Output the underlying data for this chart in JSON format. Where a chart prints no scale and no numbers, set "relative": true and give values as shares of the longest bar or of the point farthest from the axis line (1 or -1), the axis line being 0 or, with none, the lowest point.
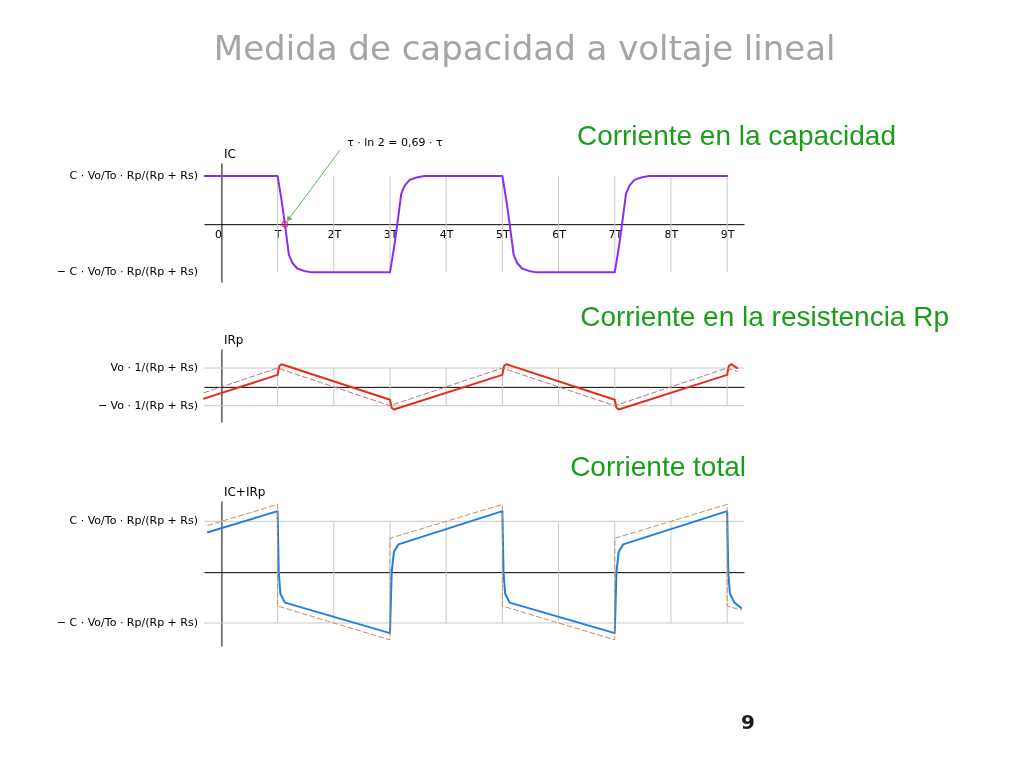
{
  "chart_data": [
    {
      "type": "line",
      "title": "Medida de capacidad a voltaje lineal",
      "subtitle": "Corriente en la capacidad",
      "ylabel": "IC",
      "relative": true,
      "xlim": [
        -0.31,
        9.3
      ],
      "xticks": [
        0,
        {
          "value": 1,
          "label": "T"
        },
        {
          "value": 2,
          "label": "2T"
        },
        {
          "value": 3,
          "label": "3T"
        },
        {
          "value": 4,
          "label": "4T"
        },
        {
          "value": 5,
          "label": "5T"
        },
        {
          "value": 6,
          "label": "6T"
        },
        {
          "value": 7,
          "label": "7T"
        },
        {
          "value": 8,
          "label": "8T"
        },
        {
          "value": 9,
          "label": "9T"
        }
      ],
      "grid": "x",
      "tick_labels": "x",
      "annotations": [
        "C · Vo/To · Rp/(Rp + Rs)",
        "− C · Vo/To · Rp/(Rp + Rs)",
        {
          "text": "τ · ln 2 = 0,69 · τ",
          "x": 1.13,
          "y": 0
        }
      ],
      "series": [
        {
          "color": "#8b2cf5",
          "x": [
            -0.3,
            1.0,
            1.07,
            1.13,
            1.2,
            1.26,
            1.35,
            1.47,
            1.61,
            3.0,
            3.07,
            3.13,
            3.2,
            3.26,
            3.35,
            3.47,
            3.61,
            5.0,
            5.07,
            5.13,
            5.2,
            5.26,
            5.35,
            5.47,
            5.61,
            7.0,
            7.07,
            7.13,
            7.2,
            7.26,
            7.35,
            7.47,
            7.61,
            9.0
          ],
          "values": [
            1,
            1,
            0.5,
            0,
            -0.63,
            -0.8,
            -0.92,
            -0.97,
            -1,
            -1,
            -0.5,
            0,
            0.63,
            0.8,
            0.92,
            0.97,
            1,
            1,
            0.5,
            0,
            -0.63,
            -0.8,
            -0.92,
            -0.97,
            -1,
            -1,
            -0.5,
            0,
            0.63,
            0.8,
            0.92,
            0.97,
            1,
            1
          ]
        }
      ]
    },
    {
      "type": "line",
      "title": "Corriente en la resistencia Rp",
      "ylabel": "IRp",
      "relative": true,
      "xlim": [
        -0.31,
        9.3
      ],
      "xticks": [
        {
          "value": 1,
          "label": null
        },
        {
          "value": 2,
          "label": null
        },
        {
          "value": 3,
          "label": null
        },
        {
          "value": 4,
          "label": null
        },
        {
          "value": 5,
          "label": null
        },
        {
          "value": 6,
          "label": null
        },
        {
          "value": 7,
          "label": null
        },
        {
          "value": 8,
          "label": null
        },
        {
          "value": 9,
          "label": null
        }
      ],
      "ref_lines": [
        {
          "axis": "y",
          "value": 0.83,
          "label": "Vo · 1/(Rp + Rs)",
          "color": "#c8c8c8"
        },
        {
          "axis": "y",
          "value": -0.83,
          "label": "− Vo · 1/(Rp + Rs)",
          "color": "#c8c8c8"
        }
      ],
      "grid": "x",
      "tick_labels": false,
      "series": [
        {
          "color": "#e82a22",
          "x": [
            -0.31,
            1.0,
            1.03,
            1.07,
            3.0,
            3.03,
            3.07,
            5.0,
            5.03,
            5.07,
            7.0,
            7.03,
            7.07,
            9.0,
            9.03,
            9.07,
            9.18
          ],
          "values": [
            -0.52,
            0.53,
            0.92,
            1,
            -0.57,
            -0.92,
            -1,
            0.53,
            0.92,
            1,
            -0.57,
            -0.92,
            -1,
            0.53,
            0.92,
            1,
            0.83
          ]
        },
        {
          "color": "#b4786e",
          "line_style": "dashed",
          "x": [
            -0.31,
            1,
            3,
            5,
            7,
            9,
            9.18
          ],
          "values": [
            -0.26,
            0.83,
            -0.83,
            0.83,
            -0.83,
            0.83,
            0.68
          ]
        }
      ]
    },
    {
      "type": "line",
      "title": "Corriente total",
      "ylabel": "IC+IRp",
      "relative": true,
      "xlim": [
        -0.31,
        9.3
      ],
      "xticks": [
        {
          "value": 1,
          "label": null
        },
        {
          "value": 2,
          "label": null
        },
        {
          "value": 3,
          "label": null
        },
        {
          "value": 4,
          "label": null
        },
        {
          "value": 5,
          "label": null
        },
        {
          "value": 6,
          "label": null
        },
        {
          "value": 7,
          "label": null
        },
        {
          "value": 8,
          "label": null
        },
        {
          "value": 9,
          "label": null
        }
      ],
      "ref_lines": [
        {
          "axis": "y",
          "value": 0.75,
          "label": "C · Vo/To · Rp/(Rp + Rs)",
          "color": "#c8c8c8"
        },
        {
          "axis": "y",
          "value": -0.75,
          "label": "− C · Vo/To · Rp/(Rp + Rs)",
          "color": "#c8c8c8"
        }
      ],
      "grid": "x",
      "tick_labels": false,
      "annotations": [
        "9"
      ],
      "series": [
        {
          "color": "#1e7fe0",
          "x": [
            -0.24,
            1.0,
            1.02,
            1.05,
            1.13,
            3.0,
            3.03,
            3.07,
            3.15,
            5.0,
            5.02,
            5.05,
            5.13,
            7.0,
            7.03,
            7.07,
            7.15,
            9.0,
            9.02,
            9.05,
            9.13,
            9.25
          ],
          "values": [
            0.59,
            0.9,
            0,
            -0.32,
            -0.45,
            -0.9,
            0,
            0.3,
            0.41,
            0.9,
            0,
            -0.32,
            -0.45,
            -0.9,
            0,
            0.3,
            0.41,
            0.9,
            0,
            -0.32,
            -0.45,
            -0.53
          ]
        },
        {
          "color": "#c49060",
          "line_style": "dashed",
          "x": [
            -0.24,
            1,
            1,
            3,
            3,
            5,
            5,
            7,
            7,
            9,
            9,
            9.25
          ],
          "values": [
            0.69,
            1,
            -0.5,
            -1,
            0.5,
            1,
            -0.5,
            -1,
            0.5,
            1,
            -0.5,
            -0.56
          ]
        }
      ]
    }
  ]
}
